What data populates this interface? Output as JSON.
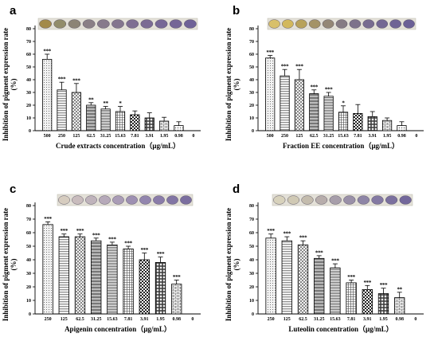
{
  "charts": [
    {
      "letter": "a",
      "ylabel_line1": "Inhibition of pigment expression rate",
      "ylabel_line2": "(%)",
      "xlabel": "Crude extracts concentration（μg/mL）",
      "categories": [
        "500",
        "250",
        "125",
        "62.5",
        "31.25",
        "15.63",
        "7.81",
        "3.91",
        "1.95",
        "0.98",
        "0"
      ],
      "yticks": [
        "0",
        "10",
        "20",
        "30",
        "40",
        "50",
        "60",
        "70",
        "80"
      ],
      "significance": [
        "***",
        "***",
        "***",
        "**",
        "**",
        "*",
        "",
        "",
        "",
        "",
        ""
      ]
    },
    {
      "letter": "b",
      "ylabel_line1": "Inhibition of pigment expression rate",
      "ylabel_line2": "(%)",
      "xlabel": "Fraction EE concentration（μg/mL）",
      "categories": [
        "500",
        "250",
        "125",
        "62.5",
        "31.25",
        "15.63",
        "7.81",
        "3.91",
        "1.95",
        "0.98",
        "0"
      ],
      "yticks": [
        "0",
        "10",
        "20",
        "30",
        "40",
        "50",
        "60",
        "70",
        "80"
      ],
      "significance": [
        "***",
        "***",
        "***",
        "***",
        "***",
        "*",
        "",
        "",
        "",
        "",
        ""
      ]
    },
    {
      "letter": "c",
      "ylabel_line1": "Inhibition of pigment expression rate",
      "ylabel_line2": "(%)",
      "xlabel": "Apigenin concentration（μg/mL）",
      "categories": [
        "250",
        "125",
        "62.5",
        "31.25",
        "15.63",
        "7.81",
        "3.91",
        "1.95",
        "0.98",
        "0"
      ],
      "yticks": [
        "0",
        "10",
        "20",
        "30",
        "40",
        "50",
        "60",
        "70",
        "80"
      ],
      "significance": [
        "***",
        "***",
        "***",
        "***",
        "***",
        "***",
        "***",
        "***",
        "***",
        ""
      ]
    },
    {
      "letter": "d",
      "ylabel_line1": "Inhibition of pigment expression rate",
      "ylabel_line2": "(%)",
      "xlabel": "Luteolin concentration（μg/mL）",
      "categories": [
        "250",
        "125",
        "62.5",
        "31.25",
        "15.63",
        "7.81",
        "3.91",
        "1.95",
        "0.98",
        "0"
      ],
      "yticks": [
        "0",
        "10",
        "20",
        "30",
        "40",
        "50",
        "60",
        "70",
        "80"
      ],
      "significance": [
        "***",
        "***",
        "***",
        "***",
        "***",
        "***",
        "***",
        "***",
        "**",
        ""
      ]
    }
  ],
  "chart_data": [
    {
      "type": "bar",
      "categories": [
        "500",
        "250",
        "125",
        "62.5",
        "31.25",
        "15.63",
        "7.81",
        "3.91",
        "1.95",
        "0.98",
        "0"
      ],
      "values": [
        56,
        32,
        30,
        20,
        17,
        15,
        12.5,
        10,
        7.5,
        4,
        0
      ],
      "errors": [
        4,
        6,
        7,
        2,
        2,
        4,
        3,
        4,
        3,
        3,
        0
      ],
      "ylim": [
        0,
        80
      ],
      "plate_colors": [
        "#a38a4a",
        "#928c6a",
        "#8c8476",
        "#8a7f86",
        "#877a8c",
        "#84768e",
        "#7f6f92",
        "#7b6b94",
        "#776896",
        "#756697",
        "#6f6297"
      ]
    },
    {
      "type": "bar",
      "categories": [
        "500",
        "250",
        "125",
        "62.5",
        "31.25",
        "15.63",
        "7.81",
        "3.91",
        "1.95",
        "0.98",
        "0"
      ],
      "values": [
        57,
        43,
        40,
        29,
        27,
        14.5,
        13.5,
        11,
        8,
        4,
        0
      ],
      "errors": [
        2,
        5,
        8,
        3,
        3,
        5,
        7,
        4,
        2,
        3,
        0
      ],
      "ylim": [
        0,
        80
      ],
      "plate_colors": [
        "#d8c06a",
        "#d2b85c",
        "#b8a25a",
        "#a49366",
        "#948776",
        "#867c84",
        "#7d728b",
        "#786c90",
        "#736793",
        "#6f6395",
        "#6b6096"
      ]
    },
    {
      "type": "bar",
      "categories": [
        "250",
        "125",
        "62.5",
        "31.25",
        "15.63",
        "7.81",
        "3.91",
        "1.95",
        "0.98",
        "0"
      ],
      "values": [
        66,
        57,
        57,
        54,
        51,
        48,
        40,
        38,
        22,
        0
      ],
      "errors": [
        2,
        2,
        2,
        2,
        2,
        2,
        5,
        4,
        3,
        0
      ],
      "ylim": [
        0,
        80
      ],
      "plate_colors": [
        "#d6ccbf",
        "#c9bcbd",
        "#bfb3bb",
        "#b6a9b9",
        "#aa9cb6",
        "#9e90b2",
        "#9386ae",
        "#8a7ca9",
        "#8275a4",
        "#7b6e9f"
      ]
    },
    {
      "type": "bar",
      "categories": [
        "250",
        "125",
        "62.5",
        "31.25",
        "15.63",
        "7.81",
        "3.91",
        "1.95",
        "0.98",
        "0"
      ],
      "values": [
        56,
        54,
        51,
        41,
        34,
        23,
        18,
        15,
        12,
        0
      ],
      "errors": [
        3,
        3,
        3,
        2,
        3,
        2,
        3,
        4,
        4,
        0
      ],
      "ylim": [
        0,
        80
      ],
      "plate_colors": [
        "#d8d2bc",
        "#d0c9b4",
        "#c4bcad",
        "#b7adab",
        "#a79eaa",
        "#9a90a8",
        "#8e85a6",
        "#8479a3",
        "#7b709e",
        "#73689b"
      ]
    }
  ]
}
